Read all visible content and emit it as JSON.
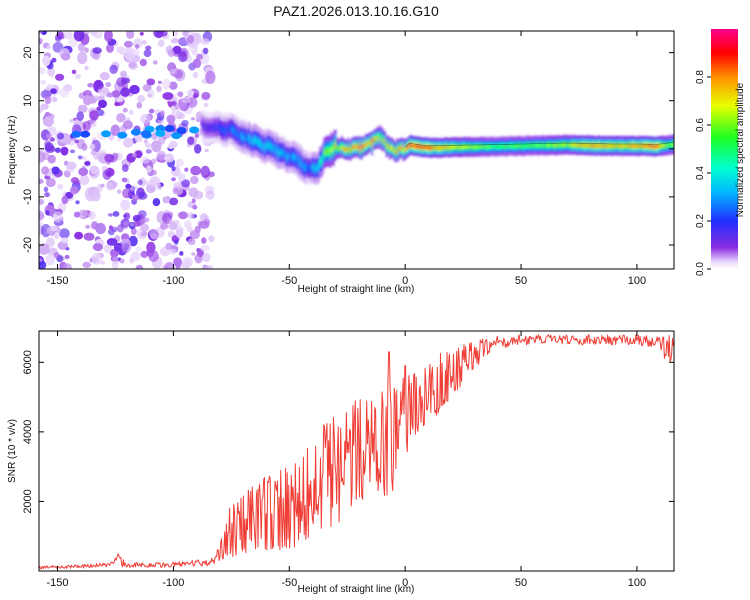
{
  "title": "PAZ1.2026.013.10.16.G10",
  "colors": {
    "snr_line": "#ef3e36",
    "frame": "#000000",
    "background": "#ffffff"
  },
  "chart_data": [
    {
      "type": "heatmap",
      "name": "spectrogram",
      "title": "PAZ1.2026.013.10.16.G10",
      "xlabel": "Height of straight line (km)",
      "ylabel": "Frequency (Hz)",
      "xlim": [
        -158,
        116
      ],
      "ylim": [
        -25,
        24.5
      ],
      "xticks": [
        -150,
        -100,
        -50,
        0,
        50,
        100
      ],
      "xtick_labels": [
        "-150",
        "-100",
        "-50",
        "0",
        "50",
        "100"
      ],
      "yticks": [
        -20,
        -10,
        0,
        10,
        20
      ],
      "ytick_labels": [
        "-20",
        "-10",
        "0",
        "10",
        "20"
      ],
      "colorbar": {
        "label": "Normalized spectral amplitude",
        "range": [
          0.0,
          1.0
        ],
        "ticks": [
          0.0,
          0.2,
          0.4,
          0.6,
          0.8
        ],
        "tick_labels": [
          "0.0",
          "0.2",
          "0.4",
          "0.6",
          "0.8"
        ],
        "colormap": "rainbow (violet low to red/magenta high)"
      },
      "ridge": {
        "description": "Frequency of the dominant spectral peak vs height; scattered low-amplitude noise below about -85 km",
        "x": [
          -85,
          -75,
          -70,
          -65,
          -60,
          -55,
          -50,
          -45,
          -42,
          -38,
          -35,
          -30,
          -25,
          -20,
          -15,
          -12,
          -10,
          -8,
          -5,
          -2,
          0,
          2,
          5,
          10,
          20,
          30,
          40,
          50,
          60,
          70,
          80,
          90,
          100,
          108,
          110,
          112,
          116
        ],
        "frequency_hz": [
          4.5,
          4.0,
          2.5,
          1.5,
          0.5,
          -0.5,
          -1.5,
          -3.0,
          -4.5,
          -4.0,
          -1.0,
          0.5,
          0.0,
          0.2,
          1.0,
          2.5,
          2.0,
          0.5,
          -0.5,
          0.0,
          0.0,
          0.8,
          0.5,
          0.2,
          0.3,
          0.4,
          0.5,
          0.6,
          0.7,
          0.8,
          0.7,
          0.6,
          0.6,
          0.5,
          0.6,
          0.7,
          1.0
        ],
        "amplitude": [
          0.15,
          0.25,
          0.3,
          0.35,
          0.35,
          0.35,
          0.3,
          0.3,
          0.25,
          0.4,
          0.55,
          0.65,
          0.8,
          0.85,
          0.8,
          0.7,
          0.65,
          0.7,
          0.75,
          0.8,
          0.85,
          0.9,
          0.9,
          0.85,
          0.7,
          0.6,
          0.55,
          0.55,
          0.6,
          0.65,
          0.8,
          0.75,
          0.8,
          0.85,
          0.75,
          0.6,
          0.6
        ]
      }
    },
    {
      "type": "line",
      "name": "snr",
      "xlabel": "Height of straight line (km)",
      "ylabel": "SNR (10 * v/v)",
      "xlim": [
        -158,
        116
      ],
      "ylim": [
        0,
        6900
      ],
      "xticks": [
        -150,
        -100,
        -50,
        0,
        50,
        100
      ],
      "xtick_labels": [
        "-150",
        "-100",
        "-50",
        "0",
        "50",
        "100"
      ],
      "yticks": [
        2000,
        4000,
        6000
      ],
      "ytick_labels": [
        "2000",
        "4000",
        "6000"
      ],
      "envelope": {
        "x": [
          -158,
          -140,
          -127,
          -124,
          -120,
          -100,
          -85,
          -80,
          -75,
          -70,
          -65,
          -60,
          -55,
          -50,
          -45,
          -40,
          -35,
          -30,
          -25,
          -20,
          -15,
          -10,
          -5,
          0,
          5,
          10,
          15,
          20,
          25,
          30,
          35,
          40,
          45,
          50,
          60,
          70,
          80,
          90,
          100,
          110,
          113,
          116
        ],
        "lower": [
          60,
          80,
          120,
          120,
          100,
          100,
          150,
          250,
          400,
          500,
          550,
          600,
          600,
          650,
          700,
          900,
          1200,
          1200,
          1800,
          2000,
          2100,
          2100,
          2300,
          3000,
          4000,
          4200,
          4600,
          5000,
          5400,
          5800,
          6200,
          6400,
          6450,
          6500,
          6500,
          6500,
          6500,
          6500,
          6500,
          6400,
          5900,
          5800
        ],
        "upper": [
          150,
          180,
          250,
          480,
          250,
          260,
          350,
          800,
          2000,
          2200,
          2600,
          2700,
          2900,
          3000,
          3200,
          3800,
          4300,
          4500,
          4700,
          5000,
          5100,
          5200,
          5300,
          5600,
          5700,
          5900,
          6300,
          6400,
          6500,
          6600,
          6700,
          6750,
          6750,
          6800,
          6800,
          6800,
          6800,
          6800,
          6800,
          6750,
          6800,
          6900
        ]
      },
      "spikes": [
        {
          "x": -124,
          "y": 480
        },
        {
          "x": -7,
          "y": 6300
        },
        {
          "x": 0,
          "y": 5900
        }
      ]
    }
  ]
}
